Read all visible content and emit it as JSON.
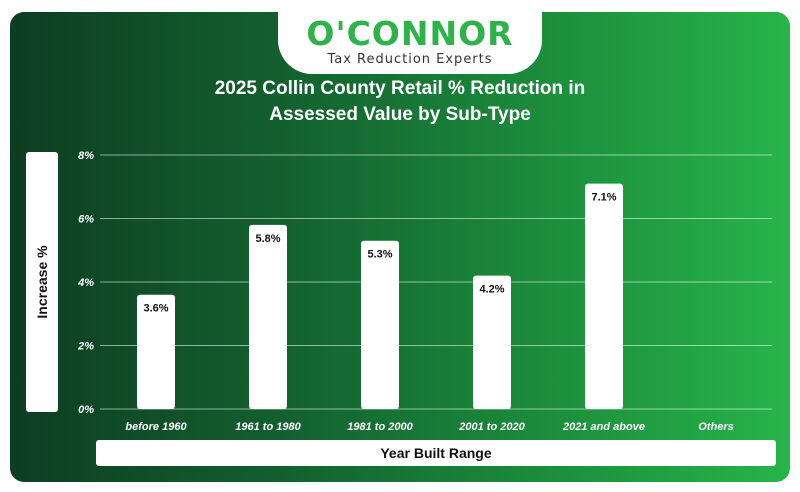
{
  "logo": {
    "word": "O'CONNOR",
    "tagline": "Tax Reduction Experts"
  },
  "colors": {
    "brand_green": "#2db34a",
    "bar": "#ffffff",
    "grid": "#ffffff"
  },
  "chart_data": {
    "type": "bar",
    "title_line1": "2025 Collin County Retail % Reduction in",
    "title_line2": "Assessed Value by Sub-Type",
    "xlabel": "Year Built Range",
    "ylabel": "Increase %",
    "categories": [
      "before 1960",
      "1961 to 1980",
      "1981 to 2000",
      "2001 to 2020",
      "2021 and above",
      "Others"
    ],
    "values": [
      3.6,
      5.8,
      5.3,
      4.2,
      7.1,
      null
    ],
    "value_labels": [
      "3.6%",
      "5.8%",
      "5.3%",
      "4.2%",
      "7.1%",
      ""
    ],
    "ylim": [
      0,
      8
    ],
    "yticks": [
      0,
      2,
      4,
      6,
      8
    ],
    "ytick_labels": [
      "0%",
      "2%",
      "4%",
      "6%",
      "8%"
    ],
    "grid": true,
    "legend": "none"
  }
}
